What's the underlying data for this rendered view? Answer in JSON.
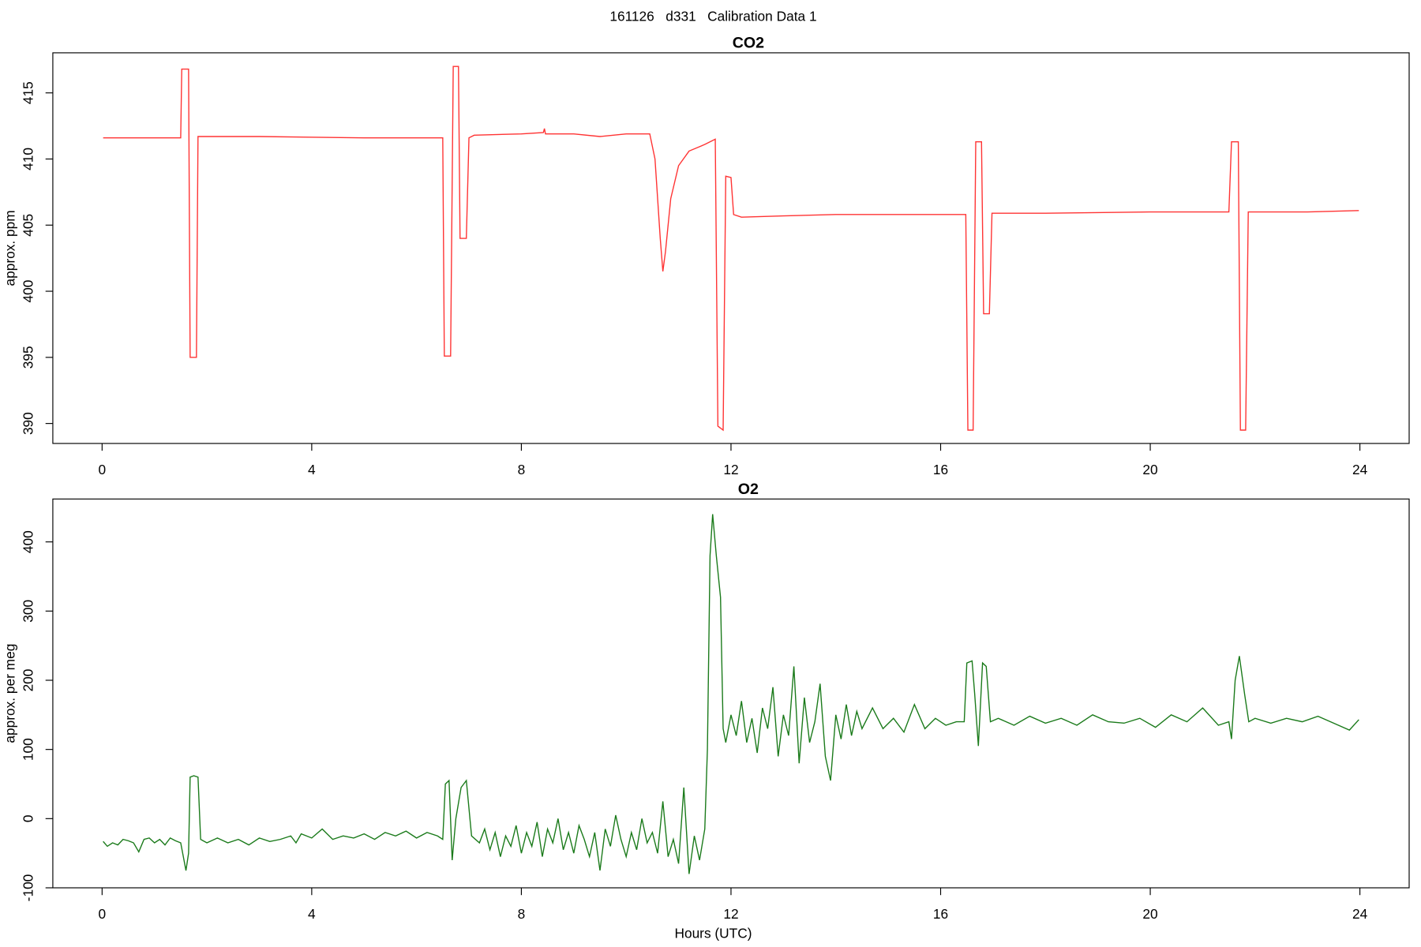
{
  "title": "161126   d331   Calibration Data 1",
  "chart_data": [
    {
      "type": "line",
      "title": "CO2",
      "ylabel": "approx. ppm",
      "color": "#ff3333",
      "x": [
        0.02,
        1.5,
        1.52,
        1.65,
        1.68,
        1.8,
        1.83,
        3,
        5,
        6.5,
        6.53,
        6.65,
        6.7,
        6.8,
        6.83,
        6.95,
        7.0,
        7.1,
        8,
        8.42,
        8.44,
        8.46,
        9.0,
        9.5,
        10.0,
        10.45,
        10.55,
        10.65,
        10.7,
        10.75,
        10.85,
        11.0,
        11.2,
        11.5,
        11.7,
        11.75,
        11.85,
        11.9,
        12.0,
        12.05,
        12.2,
        13,
        14,
        15,
        16.48,
        16.52,
        16.62,
        16.67,
        16.78,
        16.82,
        16.93,
        16.98,
        18,
        20,
        21.5,
        21.55,
        21.68,
        21.72,
        21.82,
        21.87,
        23,
        23.98
      ],
      "values": [
        411.6,
        411.6,
        416.8,
        416.8,
        395.0,
        395.0,
        411.7,
        411.7,
        411.6,
        411.6,
        395.1,
        395.1,
        417.0,
        417.0,
        404.0,
        404.0,
        411.6,
        411.8,
        411.9,
        412.0,
        412.3,
        411.9,
        411.9,
        411.7,
        411.9,
        411.9,
        410.0,
        404.0,
        401.5,
        403,
        407,
        409.5,
        410.6,
        411.1,
        411.5,
        389.8,
        389.5,
        408.7,
        408.6,
        405.8,
        405.6,
        405.7,
        405.8,
        405.8,
        405.8,
        389.5,
        389.5,
        411.3,
        411.3,
        398.3,
        398.3,
        405.9,
        405.9,
        406.0,
        406.0,
        411.3,
        411.3,
        389.5,
        389.5,
        406.0,
        406.0,
        406.1
      ],
      "xlim": [
        -0.94,
        24.94
      ],
      "ylim": [
        388.49,
        418.03
      ],
      "xticks": [
        0,
        4,
        8,
        12,
        16,
        20,
        24
      ],
      "yticks": [
        390,
        395,
        400,
        405,
        410,
        415
      ]
    },
    {
      "type": "line",
      "title": "O2",
      "ylabel": "approx. per meg",
      "xlabel": "Hours (UTC)",
      "color": "#1a7a1a",
      "x": [
        0.02,
        0.1,
        0.2,
        0.3,
        0.4,
        0.5,
        0.6,
        0.7,
        0.8,
        0.9,
        1.0,
        1.1,
        1.2,
        1.3,
        1.4,
        1.5,
        1.55,
        1.6,
        1.65,
        1.68,
        1.75,
        1.83,
        1.88,
        2.0,
        2.2,
        2.4,
        2.6,
        2.8,
        3.0,
        3.2,
        3.4,
        3.6,
        3.7,
        3.8,
        4.0,
        4.2,
        4.4,
        4.6,
        4.8,
        5.0,
        5.2,
        5.4,
        5.6,
        5.8,
        6.0,
        6.2,
        6.4,
        6.5,
        6.55,
        6.62,
        6.68,
        6.75,
        6.85,
        6.95,
        7.05,
        7.2,
        7.3,
        7.4,
        7.5,
        7.6,
        7.7,
        7.8,
        7.9,
        8.0,
        8.1,
        8.2,
        8.3,
        8.4,
        8.5,
        8.6,
        8.7,
        8.8,
        8.9,
        9.0,
        9.1,
        9.2,
        9.3,
        9.4,
        9.5,
        9.6,
        9.7,
        9.8,
        9.9,
        10.0,
        10.1,
        10.2,
        10.3,
        10.4,
        10.5,
        10.6,
        10.7,
        10.8,
        10.9,
        11.0,
        11.1,
        11.2,
        11.3,
        11.4,
        11.5,
        11.55,
        11.6,
        11.65,
        11.72,
        11.8,
        11.85,
        11.9,
        12.0,
        12.1,
        12.2,
        12.3,
        12.4,
        12.5,
        12.6,
        12.7,
        12.8,
        12.9,
        13.0,
        13.1,
        13.2,
        13.3,
        13.4,
        13.5,
        13.6,
        13.7,
        13.8,
        13.9,
        14.0,
        14.1,
        14.2,
        14.3,
        14.4,
        14.5,
        14.7,
        14.9,
        15.1,
        15.3,
        15.5,
        15.7,
        15.9,
        16.1,
        16.3,
        16.45,
        16.5,
        16.6,
        16.65,
        16.72,
        16.8,
        16.87,
        16.95,
        17.1,
        17.4,
        17.7,
        18.0,
        18.3,
        18.6,
        18.9,
        19.2,
        19.5,
        19.8,
        20.1,
        20.4,
        20.7,
        21.0,
        21.3,
        21.5,
        21.55,
        21.62,
        21.7,
        21.8,
        21.88,
        22.0,
        22.3,
        22.6,
        22.9,
        23.2,
        23.5,
        23.8,
        23.98
      ],
      "values": [
        -33,
        -40,
        -35,
        -38,
        -30,
        -32,
        -35,
        -48,
        -30,
        -28,
        -35,
        -30,
        -38,
        -28,
        -32,
        -35,
        -55,
        -75,
        -50,
        60,
        62,
        60,
        -30,
        -35,
        -28,
        -35,
        -30,
        -38,
        -28,
        -33,
        -30,
        -25,
        -35,
        -22,
        -28,
        -15,
        -30,
        -25,
        -28,
        -22,
        -30,
        -20,
        -25,
        -18,
        -28,
        -20,
        -25,
        -30,
        50,
        55,
        -60,
        0,
        45,
        55,
        -25,
        -35,
        -15,
        -45,
        -20,
        -55,
        -25,
        -40,
        -10,
        -50,
        -20,
        -40,
        -5,
        -55,
        -15,
        -35,
        0,
        -45,
        -20,
        -50,
        -10,
        -30,
        -55,
        -20,
        -75,
        -15,
        -40,
        5,
        -30,
        -55,
        -20,
        -45,
        0,
        -35,
        -20,
        -50,
        25,
        -55,
        -30,
        -65,
        45,
        -80,
        -25,
        -60,
        -15,
        100,
        380,
        440,
        380,
        320,
        130,
        110,
        150,
        120,
        170,
        110,
        145,
        95,
        160,
        130,
        190,
        90,
        150,
        120,
        220,
        80,
        175,
        110,
        140,
        195,
        90,
        55,
        150,
        115,
        165,
        120,
        155,
        130,
        160,
        130,
        145,
        125,
        165,
        130,
        145,
        135,
        140,
        140,
        225,
        228,
        180,
        105,
        225,
        220,
        140,
        145,
        135,
        148,
        138,
        145,
        135,
        150,
        140,
        138,
        145,
        132,
        150,
        140,
        160,
        135,
        140,
        115,
        200,
        235,
        180,
        140,
        145,
        138,
        145,
        140,
        148,
        138,
        128,
        143
      ],
      "xlim": [
        -0.94,
        24.94
      ],
      "ylim": [
        -100,
        462
      ],
      "xticks": [
        0,
        4,
        8,
        12,
        16,
        20,
        24
      ],
      "yticks": [
        -100,
        0,
        100,
        200,
        300,
        400
      ]
    }
  ]
}
